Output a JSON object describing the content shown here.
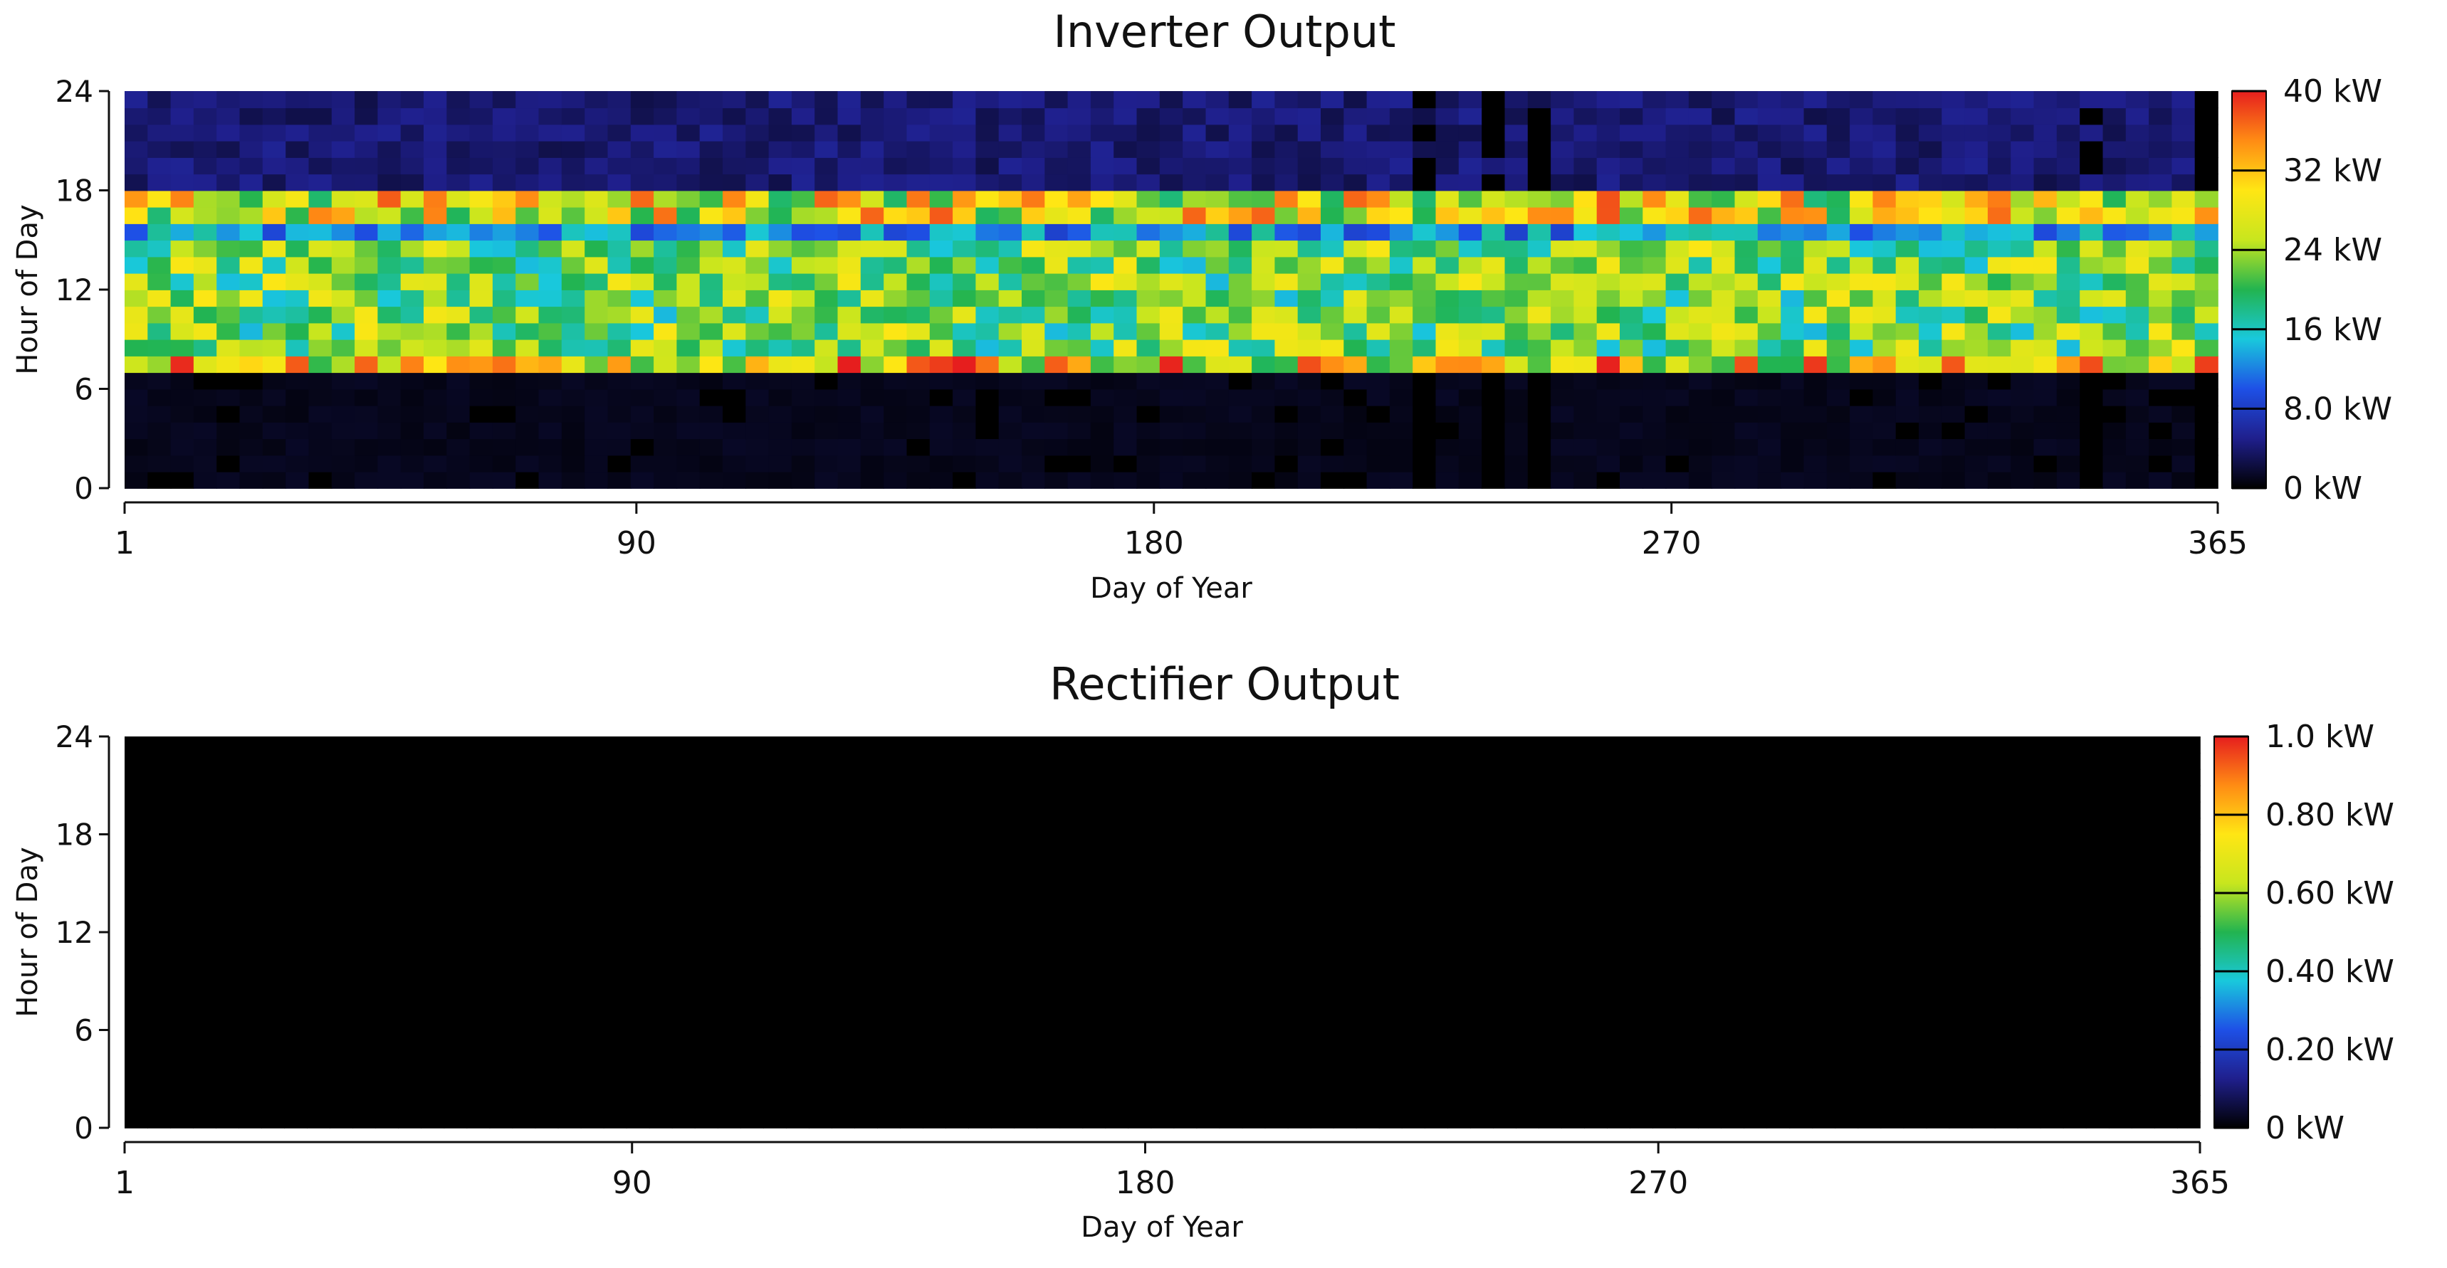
{
  "charts": [
    {
      "id": "inverter",
      "chart_data": {
        "type": "heatmap",
        "title": "Inverter Output",
        "xlabel": "Day of Year",
        "ylabel": "Hour of Day",
        "x_ticks": [
          "1",
          "90",
          "180",
          "270",
          "365"
        ],
        "y_ticks": [
          "0",
          "6",
          "12",
          "18",
          "24"
        ],
        "xlim": [
          1,
          365
        ],
        "ylim": [
          0,
          24
        ],
        "colorbar": {
          "min": 0,
          "max": 40,
          "labels": [
            "0 kW",
            "8.0 kW",
            "16 kW",
            "24 kW",
            "32 kW",
            "40 kW"
          ],
          "colors": [
            "#000000",
            "#1f1f8c",
            "#1e50e6",
            "#19c8dc",
            "#22b450",
            "#c8e61e",
            "#ffe614",
            "#ff8c14",
            "#e61e1e"
          ]
        },
        "hour_profile_kw": [
          {
            "hours": [
              0,
              7
            ],
            "typical_kw": 1
          },
          {
            "hours": [
              7,
              8
            ],
            "typical_kw": 30
          },
          {
            "hours": [
              8,
              15
            ],
            "typical_kw": 22
          },
          {
            "hours": [
              15,
              16
            ],
            "typical_kw": 13
          },
          {
            "hours": [
              16,
              18
            ],
            "typical_kw": 28
          },
          {
            "hours": [
              18,
              24
            ],
            "typical_kw": 4
          }
        ],
        "outage_days": [
          215,
          224,
          238,
          246,
          340,
          361
        ],
        "grid": false,
        "legend": "colorbar-right"
      }
    },
    {
      "id": "rectifier",
      "chart_data": {
        "type": "heatmap",
        "title": "Rectifier Output",
        "xlabel": "Day of Year",
        "ylabel": "Hour of Day",
        "x_ticks": [
          "1",
          "90",
          "180",
          "270",
          "365"
        ],
        "y_ticks": [
          "0",
          "6",
          "12",
          "18",
          "24"
        ],
        "xlim": [
          1,
          365
        ],
        "ylim": [
          0,
          24
        ],
        "colorbar": {
          "min": 0,
          "max": 1.0,
          "labels": [
            "0 kW",
            "0.20 kW",
            "0.40 kW",
            "0.60 kW",
            "0.80 kW",
            "1.0 kW"
          ],
          "colors": [
            "#000000",
            "#1f1f8c",
            "#1e50e6",
            "#19c8dc",
            "#22b450",
            "#c8e61e",
            "#ffe614",
            "#ff8c14",
            "#e61e1e"
          ]
        },
        "hour_profile_kw": [
          {
            "hours": [
              0,
              24
            ],
            "typical_kw": 0
          }
        ],
        "grid": false,
        "legend": "colorbar-right"
      }
    }
  ]
}
